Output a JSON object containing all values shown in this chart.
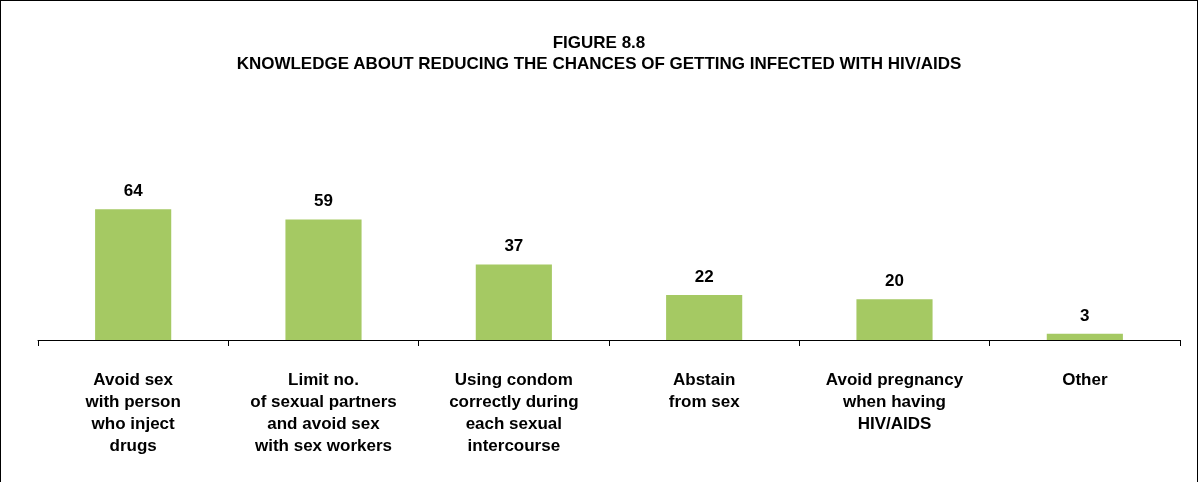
{
  "chart_data": {
    "type": "bar",
    "title": "FIGURE 8.8",
    "subtitle": "KNOWLEDGE ABOUT REDUCING THE CHANCES OF GETTING INFECTED WITH HIV/AIDS",
    "categories": [
      "Avoid sex\nwith person\nwho inject\ndrugs",
      "Limit no.\nof sexual partners\nand avoid sex\nwith sex workers",
      "Using condom\ncorrectly during\neach sexual\nintercourse",
      "Abstain\nfrom sex",
      "Avoid pregnancy\nwhen having\nHIV/AIDS",
      "Other"
    ],
    "values": [
      64,
      59,
      37,
      22,
      20,
      3
    ],
    "color": "#a5c963",
    "data_labels": true
  }
}
